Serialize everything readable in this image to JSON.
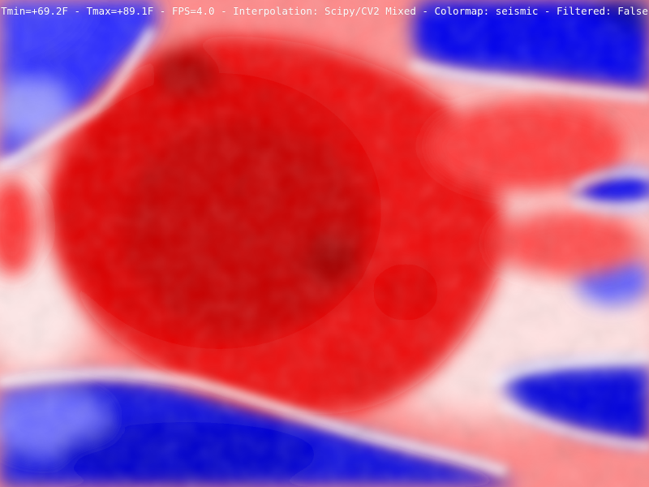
{
  "overlay": {
    "status_text": "Tmin=+69.2F - Tmax=+89.1F - FPS=4.0 - Interpolation: Scipy/CV2 Mixed - Colormap: seismic - Filtered: False"
  },
  "colormap": {
    "name": "seismic",
    "cold_color": "#0000ff",
    "mid_color": "#ffffff",
    "hot_color": "#ff0000",
    "darkest_hot_color": "#a00000"
  }
}
